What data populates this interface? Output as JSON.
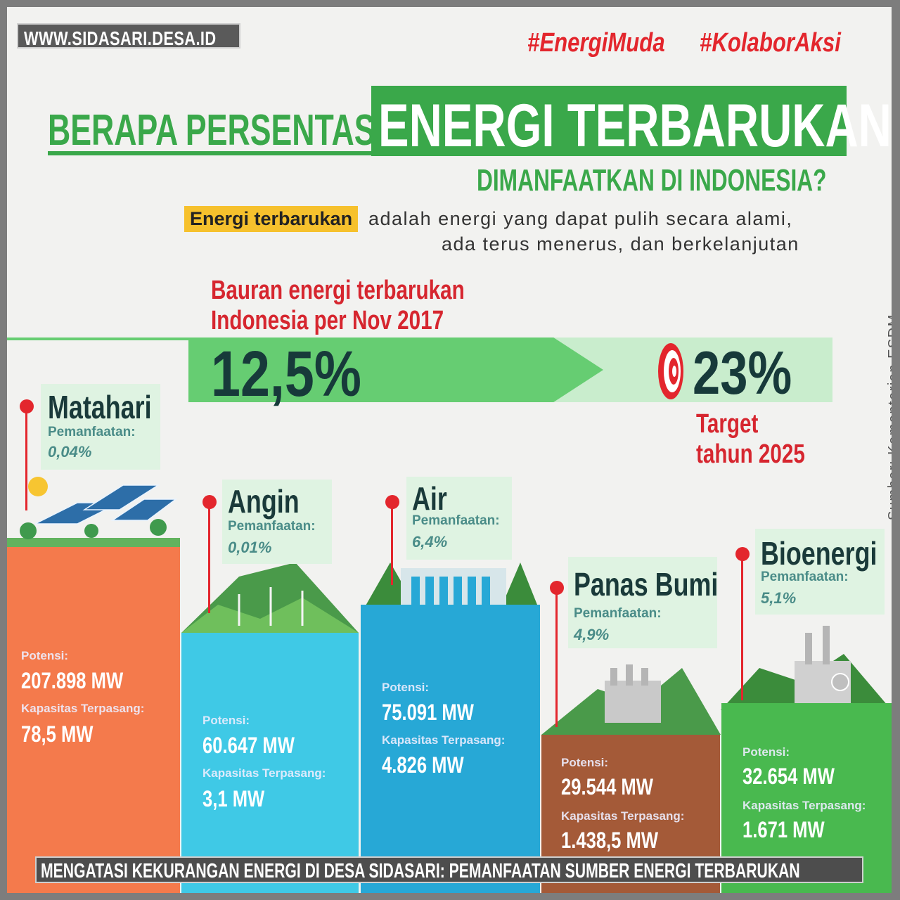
{
  "site_url": "WWW.SIDASARI.DESA.ID",
  "hashtags": [
    "#EnergiMuda",
    "#KolaborAksi"
  ],
  "title": {
    "left": "BERAPA PERSENTASE",
    "right": "ENERGI TERBARUKAN",
    "subtitle": "DIMANFAATKAN DI INDONESIA?"
  },
  "definition": {
    "highlight": "Energi terbarukan",
    "rest": "adalah energi yang dapat pulih secara alami,",
    "line2": "ada terus menerus, dan berkelanjutan"
  },
  "mix": {
    "label_line1": "Bauran energi terbarukan",
    "label_line2": "Indonesia per Nov 2017",
    "current": "12,5%",
    "current_fraction": 0.125,
    "target": "23%",
    "target_line1": "Target",
    "target_line2": "tahun 2025"
  },
  "source": "Sumber: Kementerian ESDM",
  "labels": {
    "utilization": "Pemanfaatan:",
    "potential": "Potensi:",
    "installed": "Kapasitas Terpasang:"
  },
  "sources": [
    {
      "name": "Matahari",
      "utilization": "0,04%",
      "potential": "207.898 MW",
      "installed": "78,5 MW",
      "color": "#f47a4c"
    },
    {
      "name": "Angin",
      "utilization": "0,01%",
      "potential": "60.647 MW",
      "installed": "3,1 MW",
      "color": "#3fc9e6"
    },
    {
      "name": "Air",
      "utilization": "6,4%",
      "potential": "75.091 MW",
      "installed": "4.826 MW",
      "color": "#27a8d6"
    },
    {
      "name": "Panas Bumi",
      "utilization": "4,9%",
      "potential": "29.544 MW",
      "installed": "1.438,5 MW",
      "color": "#a45a38"
    },
    {
      "name": "Bioenergi",
      "utilization": "5,1%",
      "potential": "32.654 MW",
      "installed": "1.671 MW",
      "color": "#49b94f"
    }
  ],
  "footer": "MENGATASI KEKURANGAN ENERGI DI DESA SIDASARI: PEMANFAATAN SUMBER ENERGI TERBARUKAN"
}
